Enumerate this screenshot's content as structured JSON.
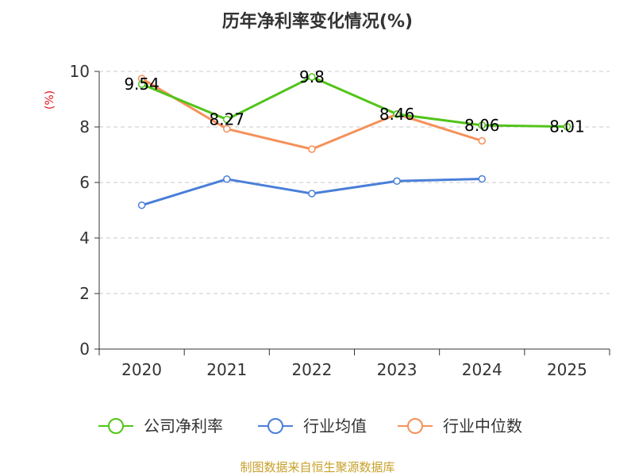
{
  "chart_data": {
    "type": "line",
    "title": "历年净利率变化情况(%)",
    "ylabel": "(%)",
    "xlabel": "",
    "categories": [
      "2020",
      "2021",
      "2022",
      "2023",
      "2024",
      "2025"
    ],
    "ylim": [
      0,
      10
    ],
    "yticks": [
      0,
      2,
      4,
      6,
      8,
      10
    ],
    "grid": true,
    "legend_position": "bottom",
    "series": [
      {
        "name": "公司净利率",
        "color": "#52c41a",
        "values": [
          9.54,
          8.27,
          9.8,
          8.46,
          8.06,
          8.01
        ],
        "labels": [
          "9.54",
          "8.27",
          "9.8",
          "8.46",
          "8.06",
          "8.01"
        ]
      },
      {
        "name": "行业均值",
        "color": "#4a7fd8",
        "values": [
          5.18,
          6.12,
          5.6,
          6.05,
          6.13,
          null
        ]
      },
      {
        "name": "行业中位数",
        "color": "#f5915a",
        "values": [
          9.74,
          7.93,
          7.2,
          8.46,
          7.5,
          null
        ]
      }
    ]
  },
  "source": "制图数据来自恒生聚源数据库"
}
